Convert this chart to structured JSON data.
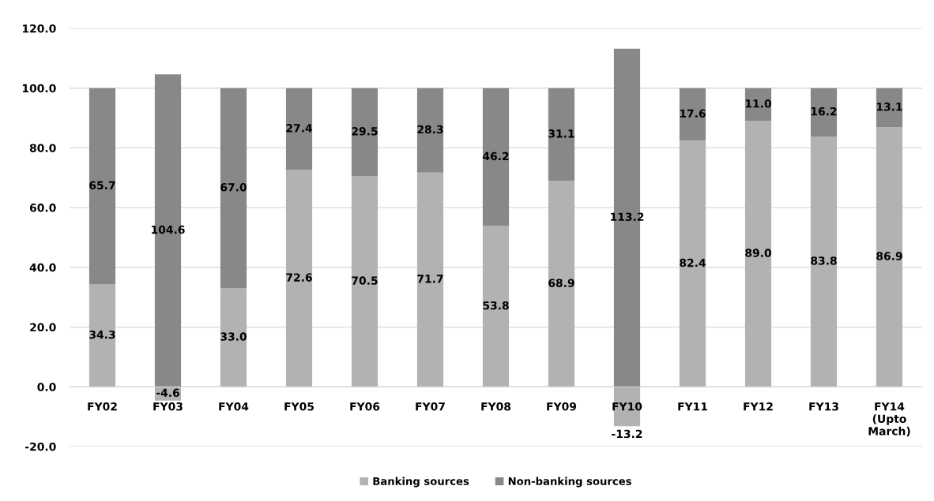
{
  "chart_data": {
    "type": "bar",
    "stacked": true,
    "categories": [
      "FY02",
      "FY03",
      "FY04",
      "FY05",
      "FY06",
      "FY07",
      "FY08",
      "FY09",
      "FY10",
      "FY11",
      "FY12",
      "FY13",
      "FY14\n(Upto\nMarch)"
    ],
    "series": [
      {
        "name": "Banking sources",
        "color": "#b2b2b2",
        "values": [
          34.3,
          -4.6,
          33.0,
          72.6,
          70.5,
          71.7,
          53.8,
          68.9,
          -13.2,
          82.4,
          89.0,
          83.8,
          86.9
        ],
        "value_labels": [
          "34.3",
          "-4.6",
          "33.0",
          "72.6",
          "70.5",
          "71.7",
          "53.8",
          "68.9",
          "-13.2",
          "82.4",
          "89.0",
          "83.8",
          "86.9"
        ]
      },
      {
        "name": "Non-banking sources",
        "color": "#888888",
        "values": [
          65.7,
          104.6,
          67.0,
          27.4,
          29.5,
          28.3,
          46.2,
          31.1,
          113.2,
          17.6,
          11.0,
          16.2,
          13.1
        ],
        "value_labels": [
          "65.7",
          "104.6",
          "67.0",
          "27.4",
          "29.5",
          "28.3",
          "46.2",
          "31.1",
          "113.2",
          "17.6",
          "11.0",
          "16.2",
          "13.1"
        ]
      }
    ],
    "ylim": [
      -20,
      120
    ],
    "yticks": [
      {
        "value": -20,
        "label": "-20.0"
      },
      {
        "value": 0,
        "label": "0.0"
      },
      {
        "value": 20,
        "label": "20.0"
      },
      {
        "value": 40,
        "label": "40.0"
      },
      {
        "value": 60,
        "label": "60.0"
      },
      {
        "value": 80,
        "label": "80.0"
      },
      {
        "value": 100,
        "label": "100.0"
      },
      {
        "value": 120,
        "label": "120.0"
      }
    ],
    "grid": "y",
    "legend": "bottom"
  }
}
